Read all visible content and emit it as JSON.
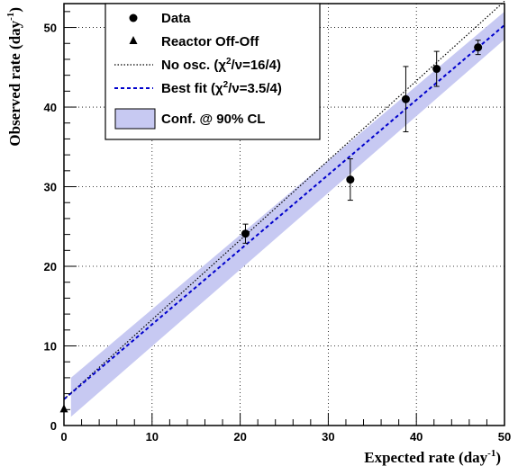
{
  "chart_data": {
    "type": "scatter",
    "xlabel": "Expected rate (day",
    "xlabel_sup": "-1",
    "xlabel_close": ")",
    "ylabel": "Observed rate (day",
    "ylabel_sup": "-1",
    "ylabel_close": ")",
    "xlim": [
      0,
      50
    ],
    "ylim": [
      0,
      53
    ],
    "x_ticks": [
      0,
      10,
      20,
      30,
      40,
      50
    ],
    "y_ticks": [
      0,
      10,
      20,
      30,
      40,
      50
    ],
    "x_tick_labels": [
      "0",
      "10",
      "20",
      "30",
      "40",
      "50"
    ],
    "y_tick_labels": [
      "0",
      "10",
      "20",
      "30",
      "40",
      "50"
    ],
    "grid": true,
    "legend_position": "top-left",
    "series": [
      {
        "name": "Data",
        "kind": "points",
        "marker": "circle",
        "points": [
          {
            "x": 20.6,
            "y": 24.1,
            "err": 1.2
          },
          {
            "x": 32.5,
            "y": 30.9,
            "err": 2.6
          },
          {
            "x": 38.8,
            "y": 41.0,
            "err": 4.1
          },
          {
            "x": 42.3,
            "y": 44.8,
            "err": 2.2
          },
          {
            "x": 47.0,
            "y": 47.5,
            "err": 0.9
          }
        ]
      },
      {
        "name": "Reactor Off-Off",
        "kind": "points",
        "marker": "triangle",
        "points": [
          {
            "x": 0,
            "y": 2.1
          }
        ]
      },
      {
        "name": "No osc. (χ²/ν=16/4)",
        "kind": "line",
        "style": "dotted",
        "color": "#000000",
        "x": [
          0,
          50
        ],
        "y": [
          3.3,
          53.3
        ]
      },
      {
        "name": "Best fit (χ²/ν=3.5/4)",
        "kind": "line",
        "style": "dashed",
        "color": "#0000cc",
        "x": [
          0,
          50
        ],
        "y": [
          3.3,
          50.3
        ]
      },
      {
        "name": "Conf. @ 90% CL",
        "kind": "band",
        "color": "#c7c9f2",
        "x": [
          0.8,
          50
        ],
        "lower": [
          1.1,
          48.5
        ],
        "upper": [
          6.0,
          52.0
        ]
      }
    ],
    "legend": {
      "data": "Data",
      "reactor": "Reactor Off-Off",
      "noosc_pre": "No osc. (",
      "noosc_post": "/",
      "noosc_val": "=16/4)",
      "best_pre": "Best fit (",
      "best_post": "/",
      "best_val": "=3.5/4)",
      "chi": "χ",
      "two": "2",
      "nu": "ν",
      "conf": "Conf. @ 90% CL"
    }
  }
}
